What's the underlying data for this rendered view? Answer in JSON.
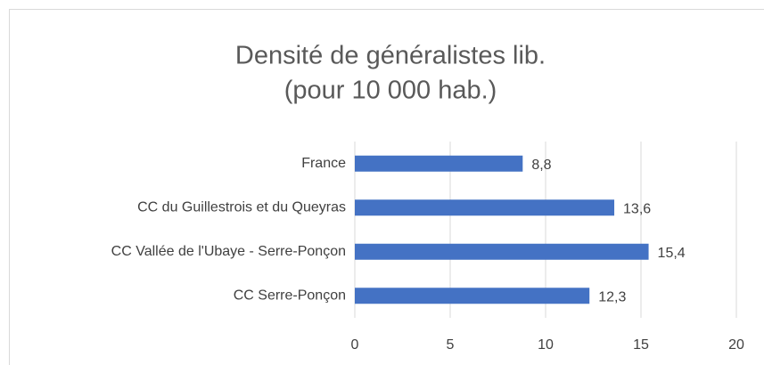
{
  "chart_data": {
    "type": "bar",
    "orientation": "horizontal",
    "title": [
      "Densité de généralistes lib.",
      "(pour 10 000 hab.)"
    ],
    "categories": [
      "France",
      "CC du Guillestrois et du Queyras",
      "CC Vallée de l'Ubaye - Serre-Ponçon",
      "CC Serre-Ponçon"
    ],
    "values": [
      8.8,
      13.6,
      15.4,
      12.3
    ],
    "value_labels": [
      "8,8",
      "13,6",
      "15,4",
      "12,3"
    ],
    "color": "#4472c4",
    "xlim": [
      0,
      20
    ],
    "xticks": [
      0,
      5,
      10,
      15,
      20
    ],
    "grid": true
  }
}
